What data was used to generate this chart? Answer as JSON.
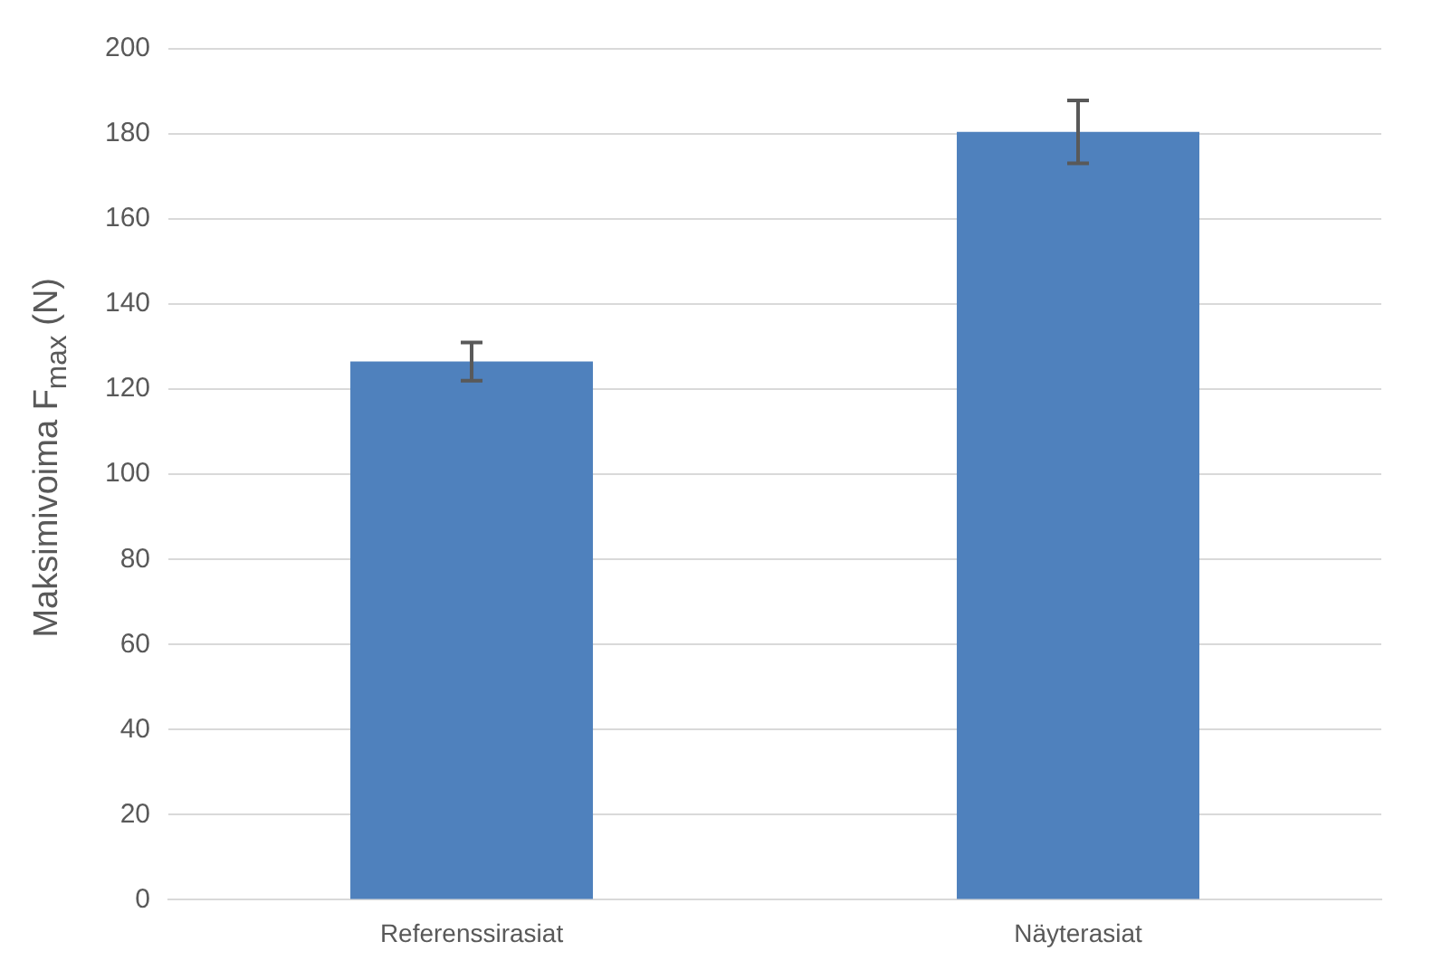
{
  "chart_data": {
    "type": "bar",
    "ylabel": "Maksimivoima F$_{max}$ (N)",
    "categories": [
      "Referenssirasiat",
      "Näyterasiat"
    ],
    "values": [
      126.5,
      180.5
    ],
    "errors": [
      4.5,
      7.4
    ],
    "color": "#4f81bd",
    "ylim": [
      0,
      200
    ],
    "yticks": [
      0,
      20,
      40,
      60,
      80,
      100,
      120,
      140,
      160,
      180,
      200
    ],
    "grid": "y",
    "legend": false
  }
}
